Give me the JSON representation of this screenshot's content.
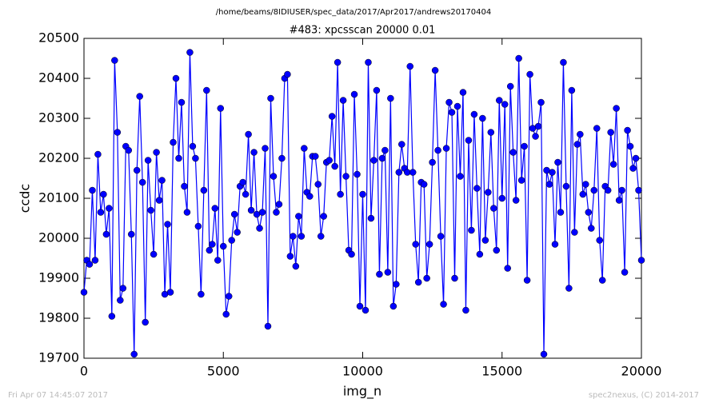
{
  "chart_data": {
    "type": "line",
    "suptitle": "/home/beams/8IDIUSER/spec_data/2017/Apr2017/andrews20170404",
    "title": "#483: xpcsscan 20000 0.01",
    "x_label": "img_n",
    "y_label": "ccdc",
    "footer_left": "Fri Apr 07 14:45:07 2017",
    "footer_right": "spec2nexus, (C) 2014-2017",
    "xlim": [
      0,
      20000
    ],
    "xticks": [
      0,
      5000,
      10000,
      15000,
      20000
    ],
    "ylim": [
      19700,
      20500
    ],
    "yticks": [
      19700,
      19800,
      19900,
      20000,
      20100,
      20200,
      20300,
      20400,
      20500
    ],
    "grid": false,
    "x": [
      0,
      100,
      200,
      300,
      400,
      500,
      600,
      700,
      800,
      900,
      1000,
      1100,
      1200,
      1300,
      1400,
      1500,
      1600,
      1700,
      1800,
      1900,
      2000,
      2100,
      2200,
      2300,
      2400,
      2500,
      2600,
      2700,
      2800,
      2900,
      3000,
      3100,
      3200,
      3300,
      3400,
      3500,
      3600,
      3700,
      3800,
      3900,
      4000,
      4100,
      4200,
      4300,
      4400,
      4500,
      4600,
      4700,
      4800,
      4900,
      5000,
      5100,
      5200,
      5300,
      5400,
      5500,
      5600,
      5700,
      5800,
      5900,
      6000,
      6100,
      6200,
      6300,
      6400,
      6500,
      6600,
      6700,
      6800,
      6900,
      7000,
      7100,
      7200,
      7300,
      7400,
      7500,
      7600,
      7700,
      7800,
      7900,
      8000,
      8100,
      8200,
      8300,
      8400,
      8500,
      8600,
      8700,
      8800,
      8900,
      9000,
      9100,
      9200,
      9300,
      9400,
      9500,
      9600,
      9700,
      9800,
      9900,
      10000,
      10100,
      10200,
      10300,
      10400,
      10500,
      10600,
      10700,
      10800,
      10900,
      11000,
      11100,
      11200,
      11300,
      11400,
      11500,
      11600,
      11700,
      11800,
      11900,
      12000,
      12100,
      12200,
      12300,
      12400,
      12500,
      12600,
      12700,
      12800,
      12900,
      13000,
      13100,
      13200,
      13300,
      13400,
      13500,
      13600,
      13700,
      13800,
      13900,
      14000,
      14100,
      14200,
      14300,
      14400,
      14500,
      14600,
      14700,
      14800,
      14900,
      15000,
      15100,
      15200,
      15300,
      15400,
      15500,
      15600,
      15700,
      15800,
      15900,
      16000,
      16100,
      16200,
      16300,
      16400,
      16500,
      16600,
      16700,
      16800,
      16900,
      17000,
      17100,
      17200,
      17300,
      17400,
      17500,
      17600,
      17700,
      17800,
      17900,
      18000,
      18100,
      18200,
      18300,
      18400,
      18500,
      18600,
      18700,
      18800,
      18900,
      19000,
      19100,
      19200,
      19300,
      19400,
      19500,
      19600,
      19700,
      19800,
      19900,
      20000
    ],
    "series": [
      {
        "name": "ccdc",
        "color": "#0000ff",
        "values": [
          19865,
          19945,
          19935,
          20120,
          19945,
          20210,
          20065,
          20110,
          20010,
          20075,
          19805,
          20445,
          20265,
          19845,
          19875,
          20230,
          20220,
          20010,
          19710,
          20170,
          20355,
          20140,
          19790,
          20195,
          20070,
          19960,
          20215,
          20095,
          20145,
          19860,
          20035,
          19865,
          20240,
          20400,
          20200,
          20340,
          20130,
          20065,
          20465,
          20230,
          20200,
          20030,
          19860,
          20120,
          20370,
          19970,
          19985,
          20075,
          19945,
          20325,
          19980,
          19810,
          19855,
          19995,
          20060,
          20015,
          20130,
          20140,
          20110,
          20260,
          20070,
          20215,
          20060,
          20025,
          20065,
          20225,
          19780,
          20350,
          20155,
          20065,
          20085,
          20200,
          20400,
          20410,
          19955,
          20005,
          19930,
          20055,
          20005,
          20225,
          20115,
          20105,
          20205,
          20205,
          20135,
          20005,
          20055,
          20190,
          20195,
          20305,
          20180,
          20440,
          20110,
          20345,
          20155,
          19970,
          19960,
          20360,
          20160,
          19830,
          20110,
          19820,
          20440,
          20050,
          20195,
          20370,
          19910,
          20200,
          20220,
          19915,
          20350,
          19830,
          19885,
          20165,
          20235,
          20175,
          20165,
          20430,
          20165,
          19985,
          19890,
          20140,
          20135,
          19900,
          19985,
          20190,
          20420,
          20220,
          20005,
          19835,
          20225,
          20340,
          20315,
          19900,
          20330,
          20155,
          20365,
          19820,
          20245,
          20020,
          20310,
          20125,
          19960,
          20300,
          19995,
          20115,
          20265,
          20075,
          19970,
          20345,
          20100,
          20335,
          19925,
          20380,
          20215,
          20095,
          20450,
          20145,
          20230,
          19895,
          20410,
          20275,
          20255,
          20280,
          20340,
          19710,
          20170,
          20135,
          20165,
          19985,
          20190,
          20065,
          20440,
          20130,
          19875,
          20370,
          20015,
          20235,
          20260,
          20110,
          20135,
          20065,
          20025,
          20120,
          20275,
          19995,
          19895,
          20130,
          20120,
          20265,
          20185,
          20325,
          20095,
          20120,
          19915,
          20270,
          20230,
          20175,
          20200,
          20120,
          19945
        ]
      }
    ]
  }
}
